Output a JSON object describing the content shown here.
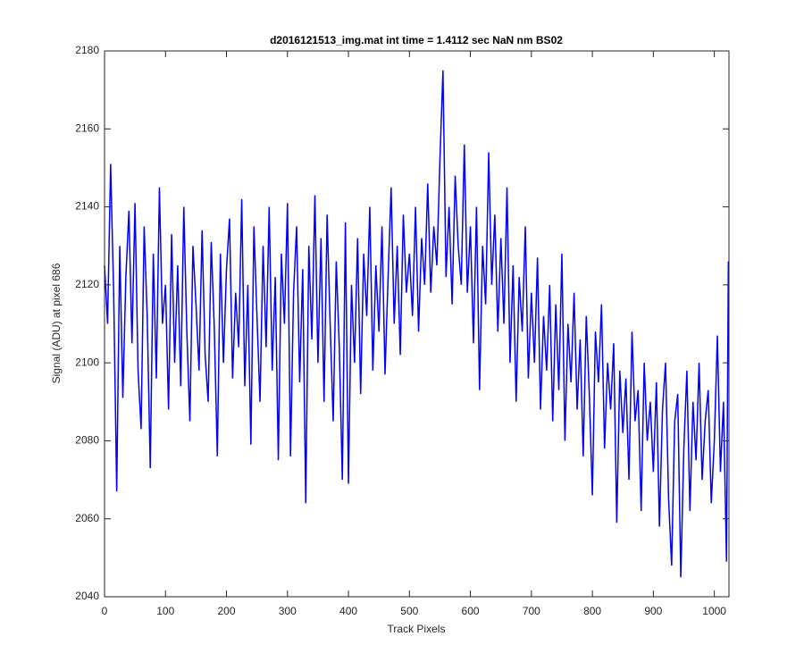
{
  "chart_data": {
    "type": "line",
    "title": "d2016121513_img.mat int time = 1.4112 sec  NaN nm BS02",
    "x_label": "Track Pixels",
    "y_label": "Signal (ADU) at pixel 686",
    "xlim": [
      0,
      1024
    ],
    "ylim": [
      2040,
      2180
    ],
    "xticks": [
      0,
      100,
      200,
      300,
      400,
      500,
      600,
      700,
      800,
      900,
      1000
    ],
    "yticks": [
      2040,
      2060,
      2080,
      2100,
      2120,
      2140,
      2160,
      2180
    ],
    "x": [
      0,
      5,
      10,
      15,
      20,
      25,
      30,
      35,
      40,
      45,
      50,
      55,
      60,
      65,
      70,
      75,
      80,
      85,
      90,
      95,
      100,
      105,
      110,
      115,
      120,
      125,
      130,
      135,
      140,
      145,
      150,
      155,
      160,
      165,
      170,
      175,
      180,
      185,
      190,
      195,
      200,
      205,
      210,
      215,
      220,
      225,
      230,
      235,
      240,
      245,
      250,
      255,
      260,
      265,
      270,
      275,
      280,
      285,
      290,
      295,
      300,
      305,
      310,
      315,
      320,
      325,
      330,
      335,
      340,
      345,
      350,
      355,
      360,
      365,
      370,
      375,
      380,
      385,
      390,
      395,
      400,
      405,
      410,
      415,
      420,
      425,
      430,
      435,
      440,
      445,
      450,
      455,
      460,
      465,
      470,
      475,
      480,
      485,
      490,
      495,
      500,
      505,
      510,
      515,
      520,
      525,
      530,
      535,
      540,
      545,
      550,
      555,
      560,
      565,
      570,
      575,
      580,
      585,
      590,
      595,
      600,
      605,
      610,
      615,
      620,
      625,
      630,
      635,
      640,
      645,
      650,
      655,
      660,
      665,
      670,
      675,
      680,
      685,
      690,
      695,
      700,
      705,
      710,
      715,
      720,
      725,
      730,
      735,
      740,
      745,
      750,
      755,
      760,
      765,
      770,
      775,
      780,
      785,
      790,
      795,
      800,
      805,
      810,
      815,
      820,
      825,
      830,
      835,
      840,
      845,
      850,
      855,
      860,
      865,
      870,
      875,
      880,
      885,
      890,
      895,
      900,
      905,
      910,
      915,
      920,
      925,
      930,
      935,
      940,
      945,
      950,
      955,
      960,
      965,
      970,
      975,
      980,
      985,
      990,
      995,
      1000,
      1005,
      1010,
      1015,
      1020,
      1023
    ],
    "series": [
      {
        "name": "signal",
        "color": "#0000ff",
        "values": [
          2125,
          2110,
          2151,
          2118,
          2067,
          2130,
          2091,
          2122,
          2139,
          2105,
          2141,
          2098,
          2083,
          2135,
          2112,
          2073,
          2128,
          2096,
          2145,
          2110,
          2120,
          2088,
          2133,
          2100,
          2125,
          2094,
          2140,
          2108,
          2085,
          2130,
          2115,
          2098,
          2134,
          2102,
          2090,
          2131,
          2109,
          2076,
          2128,
          2100,
          2124,
          2137,
          2096,
          2118,
          2104,
          2142,
          2094,
          2120,
          2079,
          2135,
          2112,
          2090,
          2130,
          2104,
          2140,
          2098,
          2122,
          2075,
          2128,
          2110,
          2141,
          2076,
          2118,
          2135,
          2095,
          2124,
          2064,
          2130,
          2106,
          2143,
          2100,
          2132,
          2090,
          2138,
          2110,
          2085,
          2126,
          2104,
          2070,
          2136,
          2069,
          2120,
          2100,
          2132,
          2092,
          2128,
          2112,
          2140,
          2098,
          2125,
          2108,
          2135,
          2097,
          2122,
          2145,
          2110,
          2130,
          2102,
          2138,
          2118,
          2128,
          2112,
          2140,
          2108,
          2132,
          2120,
          2146,
          2118,
          2135,
          2125,
          2152,
          2175,
          2122,
          2140,
          2115,
          2148,
          2130,
          2120,
          2156,
          2118,
          2135,
          2105,
          2140,
          2093,
          2130,
          2115,
          2154,
          2120,
          2138,
          2108,
          2132,
          2110,
          2145,
          2100,
          2125,
          2090,
          2122,
          2108,
          2135,
          2096,
          2118,
          2100,
          2127,
          2088,
          2112,
          2098,
          2120,
          2085,
          2115,
          2093,
          2128,
          2080,
          2110,
          2095,
          2118,
          2088,
          2106,
          2076,
          2112,
          2092,
          2066,
          2108,
          2095,
          2115,
          2078,
          2100,
          2088,
          2105,
          2059,
          2098,
          2082,
          2096,
          2070,
          2108,
          2085,
          2093,
          2062,
          2100,
          2080,
          2090,
          2072,
          2095,
          2058,
          2088,
          2100,
          2065,
          2048,
          2085,
          2092,
          2045,
          2078,
          2098,
          2062,
          2090,
          2075,
          2100,
          2070,
          2085,
          2093,
          2064,
          2080,
          2107,
          2072,
          2090,
          2049,
          2126
        ]
      }
    ]
  }
}
